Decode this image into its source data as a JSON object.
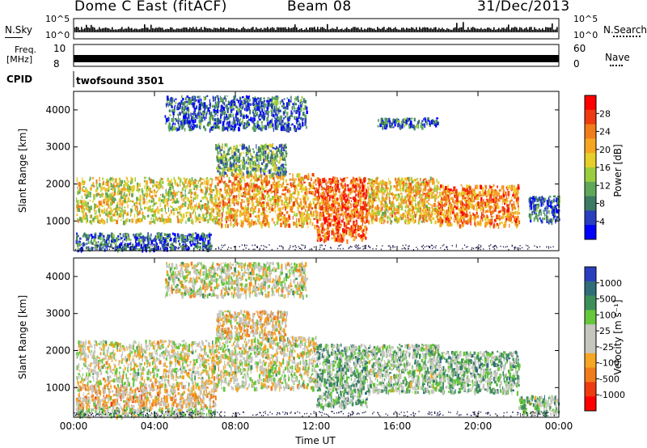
{
  "header": {
    "station": "Dome C East (fitACF)",
    "beam": "Beam 08",
    "date": "31/Dec/2013"
  },
  "strips": {
    "nsky_label": "N.Sky",
    "nsearch_label": "N.Search",
    "noise_ticks_left": [
      "10^5",
      "10^0"
    ],
    "noise_ticks_right": [
      "10^5",
      "10^0"
    ],
    "freq_label_line1": "Freq.",
    "freq_label_line2": "[MHz]",
    "freq_tick_left": [
      "10",
      "8"
    ],
    "nave_label": "Nave",
    "nave_ticks_right": [
      "60",
      "0"
    ],
    "cpid_label": "CPID",
    "cpid_value": "twofsound 3501"
  },
  "colorbars": {
    "power": {
      "label": "Power [dB]",
      "ticks": [
        "28",
        "24",
        "20",
        "16",
        "12",
        "8",
        "4"
      ],
      "colors": [
        "#ff0000",
        "#ee3b10",
        "#f07c1c",
        "#f5a623",
        "#e6cf2a",
        "#9ccd3e",
        "#5fa85a",
        "#3b7a63",
        "#2a3fbf",
        "#0000ff"
      ]
    },
    "velocity": {
      "label": "Velocity [m s⁻¹]",
      "ticks": [
        "1000",
        "500",
        "100",
        "25",
        "-25",
        "-100",
        "-500",
        "-1000"
      ],
      "colors": [
        "#2a3fbf",
        "#2f6e78",
        "#3d8f5a",
        "#66c73b",
        "#c6c6be",
        "#c6c6be",
        "#f5a623",
        "#f07c1c",
        "#ee3b10",
        "#ff0000"
      ]
    }
  },
  "axes": {
    "ylabel": "Slant Range [km]",
    "yticks": [
      "4000",
      "3000",
      "2000",
      "1000"
    ],
    "xticks": [
      "00:00",
      "04:00",
      "08:00",
      "12:00",
      "16:00",
      "20:00",
      "00:00"
    ],
    "xlabel": "Time UT"
  },
  "chart_data": [
    {
      "type": "heatmap",
      "name": "power",
      "x_unit": "hours UT",
      "xlim": [
        0,
        24
      ],
      "ylim": [
        200,
        4500
      ],
      "zlim": [
        0,
        30
      ],
      "regions": [
        {
          "x": [
            0.1,
            6.8
          ],
          "y": [
            250,
            700
          ],
          "z": 6
        },
        {
          "x": [
            0.1,
            7.0
          ],
          "y": [
            1000,
            2200
          ],
          "z": 16
        },
        {
          "x": [
            7.0,
            12.0
          ],
          "y": [
            900,
            2300
          ],
          "z": 20
        },
        {
          "x": [
            7.0,
            10.5
          ],
          "y": [
            2300,
            3100
          ],
          "z": 10
        },
        {
          "x": [
            4.5,
            11.5
          ],
          "y": [
            3500,
            4400
          ],
          "z": 6
        },
        {
          "x": [
            12.0,
            14.5
          ],
          "y": [
            500,
            2200
          ],
          "z": 24
        },
        {
          "x": [
            14.5,
            18.0
          ],
          "y": [
            1000,
            2200
          ],
          "z": 18
        },
        {
          "x": [
            15.0,
            18.0
          ],
          "y": [
            3550,
            3800
          ],
          "z": 6
        },
        {
          "x": [
            18.0,
            22.0
          ],
          "y": [
            900,
            2000
          ],
          "z": 22
        },
        {
          "x": [
            22.5,
            24.0
          ],
          "y": [
            1000,
            1700
          ],
          "z": 6
        }
      ]
    },
    {
      "type": "heatmap",
      "name": "velocity",
      "x_unit": "hours UT",
      "xlim": [
        0,
        24
      ],
      "ylim": [
        200,
        4500
      ],
      "zlim": [
        -1000,
        1000
      ],
      "regions": [
        {
          "x": [
            0.1,
            7.0
          ],
          "y": [
            250,
            500
          ],
          "z": 150
        },
        {
          "x": [
            0.1,
            7.0
          ],
          "y": [
            500,
            1100
          ],
          "z": -200
        },
        {
          "x": [
            0.1,
            7.0
          ],
          "y": [
            1100,
            2300
          ],
          "z": 0
        },
        {
          "x": [
            7.0,
            12.0
          ],
          "y": [
            1000,
            2400
          ],
          "z": 0
        },
        {
          "x": [
            7.0,
            10.5
          ],
          "y": [
            2400,
            3100
          ],
          "z": -150
        },
        {
          "x": [
            4.5,
            11.5
          ],
          "y": [
            3500,
            4400
          ],
          "z": 0
        },
        {
          "x": [
            12.0,
            14.5
          ],
          "y": [
            500,
            2200
          ],
          "z": 300
        },
        {
          "x": [
            14.5,
            18.0
          ],
          "y": [
            900,
            2200
          ],
          "z": 200
        },
        {
          "x": [
            18.0,
            22.0
          ],
          "y": [
            900,
            2000
          ],
          "z": 250
        },
        {
          "x": [
            22.0,
            24.0
          ],
          "y": [
            300,
            800
          ],
          "z": 200
        }
      ]
    }
  ]
}
